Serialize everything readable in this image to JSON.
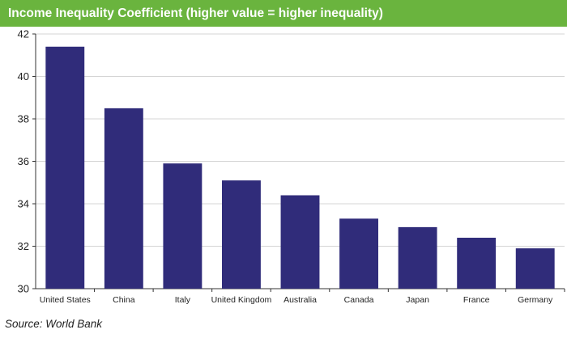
{
  "header": {
    "title": "Income Inequality Coefficient (higher value = higher inequality)"
  },
  "footer": {
    "source": "Source: World Bank"
  },
  "colors": {
    "title_bar": "#6ab43e",
    "bar": "#302c7a",
    "grid": "#d4d4d4"
  },
  "chart_data": {
    "type": "bar",
    "title": "Income Inequality Coefficient (higher value = higher inequality)",
    "xlabel": "",
    "ylabel": "",
    "categories": [
      "United States",
      "China",
      "Italy",
      "United Kingdom",
      "Australia",
      "Canada",
      "Japan",
      "France",
      "Germany"
    ],
    "values": [
      41.4,
      38.5,
      35.9,
      35.1,
      34.4,
      33.3,
      32.9,
      32.4,
      31.9
    ],
    "ylim": [
      30,
      42
    ],
    "yticks": [
      30,
      32,
      34,
      36,
      38,
      40,
      42
    ],
    "grid": true,
    "legend": "none"
  }
}
